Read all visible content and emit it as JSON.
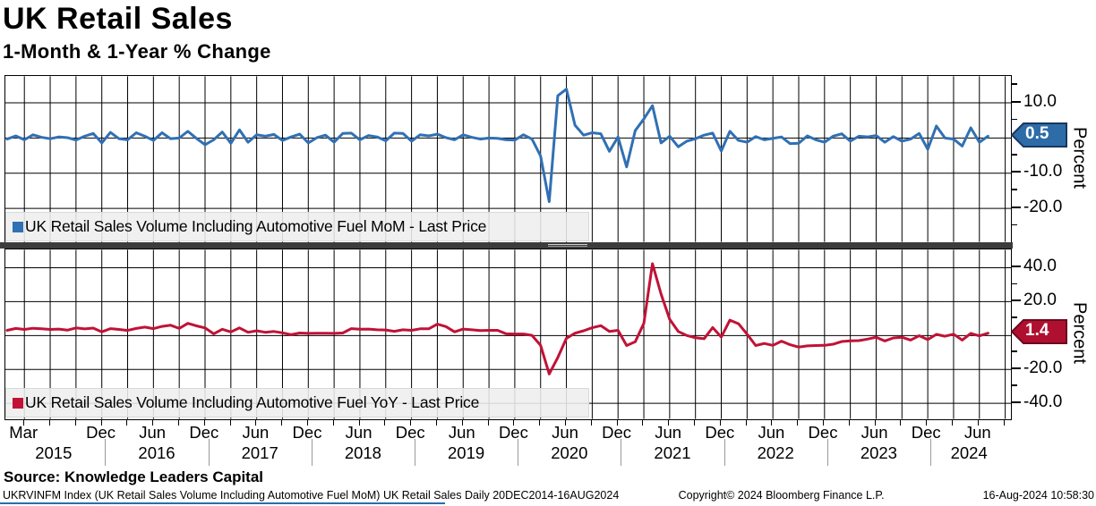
{
  "header": {
    "title": "UK Retail Sales",
    "subtitle": "1-Month & 1-Year % Change"
  },
  "footer": {
    "source": "Source: Knowledge Leaders Capital",
    "index_info": "UKRVINFM Index (UK Retail Sales Volume Including Automotive Fuel MoM) UK Retail Sales  Daily 20DEC2014-16AUG2024",
    "copyright": "Copyright© 2024 Bloomberg Finance L.P.",
    "timestamp": "16-Aug-2024 10:58:30"
  },
  "x_axis": {
    "month_ticks": [
      {
        "label": "Mar",
        "index": 2
      },
      {
        "label": "Dec",
        "index": 11
      },
      {
        "label": "Jun",
        "index": 17
      },
      {
        "label": "Dec",
        "index": 23
      },
      {
        "label": "Jun",
        "index": 29
      },
      {
        "label": "Dec",
        "index": 35
      },
      {
        "label": "Jun",
        "index": 41
      },
      {
        "label": "Dec",
        "index": 47
      },
      {
        "label": "Jun",
        "index": 53
      },
      {
        "label": "Dec",
        "index": 59
      },
      {
        "label": "Jun",
        "index": 65
      },
      {
        "label": "Dec",
        "index": 71
      },
      {
        "label": "Jun",
        "index": 77
      },
      {
        "label": "Dec",
        "index": 83
      },
      {
        "label": "Jun",
        "index": 89
      },
      {
        "label": "Dec",
        "index": 95
      },
      {
        "label": "Jun",
        "index": 101
      },
      {
        "label": "Dec",
        "index": 107
      },
      {
        "label": "Jun",
        "index": 113
      }
    ],
    "year_labels": [
      {
        "label": "2015",
        "center_index": 5.5
      },
      {
        "label": "2016",
        "center_index": 17.5
      },
      {
        "label": "2017",
        "center_index": 29.5
      },
      {
        "label": "2018",
        "center_index": 41.5
      },
      {
        "label": "2019",
        "center_index": 53.5
      },
      {
        "label": "2020",
        "center_index": 65.5
      },
      {
        "label": "2021",
        "center_index": 77.5
      },
      {
        "label": "2022",
        "center_index": 89.5
      },
      {
        "label": "2023",
        "center_index": 101.5
      },
      {
        "label": "2024",
        "center_index": 112
      }
    ],
    "year_separator_indices": [
      11.5,
      23.5,
      35.5,
      47.5,
      59.5,
      71.5,
      83.5,
      95.5,
      107.5
    ]
  },
  "chart_data": [
    {
      "type": "line",
      "legend": "UK Retail Sales Volume Including Automotive Fuel MoM - Last Price",
      "series_name": "UK Retail Sales Volume Including Automotive Fuel MoM",
      "axis_title": "Percent",
      "color": "#3070B4",
      "badge_border": "#17375E",
      "last_price": "0.5",
      "last_price_value": 0.5,
      "ylim": [
        -29.5,
        17.5
      ],
      "ygrid": [
        10,
        0,
        -10,
        -20
      ],
      "yticks": [
        {
          "value": 10,
          "label": "10.0"
        },
        {
          "value": -10,
          "label": "-10.0"
        },
        {
          "value": -20,
          "label": "-20.0"
        }
      ],
      "yticks_minor": [
        15,
        5,
        -5,
        -15,
        -25
      ],
      "x_unit": "month",
      "x_start": "2015-01",
      "x_end": "2024-07",
      "values": [
        -0.3,
        0.6,
        -0.5,
        0.9,
        0.2,
        -0.2,
        0.3,
        0.1,
        -0.6,
        0.5,
        1.3,
        -1.4,
        1.6,
        -0.2,
        -0.5,
        1.5,
        0.5,
        -0.7,
        1.5,
        -0.2,
        0.0,
        1.9,
        -0.1,
        -1.9,
        -0.5,
        1.7,
        -1.5,
        2.3,
        -1.2,
        0.9,
        0.5,
        1.0,
        -0.7,
        0.3,
        1.1,
        -1.4,
        0.1,
        0.8,
        -1.2,
        1.3,
        1.4,
        -0.5,
        0.7,
        0.3,
        -0.8,
        1.4,
        1.3,
        -0.9,
        0.9,
        0.6,
        1.1,
        0.1,
        -0.5,
        0.9,
        0.2,
        -0.3,
        0.0,
        -0.1,
        -0.5,
        -0.6,
        0.9,
        -0.3,
        -5.1,
        -18.1,
        12.0,
        13.9,
        3.6,
        0.8,
        1.5,
        1.2,
        -3.8,
        0.3,
        -8.2,
        2.1,
        5.4,
        9.2,
        -1.4,
        0.5,
        -2.5,
        -0.9,
        -0.2,
        0.8,
        1.4,
        -3.7,
        1.9,
        -0.7,
        -1.2,
        0.4,
        -0.5,
        -0.1,
        0.3,
        -1.6,
        -1.5,
        0.6,
        -0.5,
        -1.2,
        0.5,
        1.2,
        -0.9,
        0.5,
        0.3,
        0.7,
        -1.2,
        0.4,
        -0.9,
        -0.3,
        1.3,
        -3.2,
        3.4,
        0.0,
        -0.3,
        -2.3,
        2.9,
        -1.2,
        0.5
      ]
    },
    {
      "type": "line",
      "legend": "UK Retail Sales Volume Including Automotive Fuel YoY - Last Price",
      "series_name": "UK Retail Sales Volume Including Automotive Fuel YoY",
      "axis_title": "Percent",
      "color": "#C11236",
      "badge_border": "#6B0A1F",
      "last_price": "1.4",
      "last_price_value": 1.4,
      "ylim": [
        -49.2,
        50.6
      ],
      "ygrid": [
        40,
        20,
        0,
        -20,
        -40
      ],
      "yticks": [
        {
          "value": 40,
          "label": "40.0"
        },
        {
          "value": 20,
          "label": "20.0"
        },
        {
          "value": -20,
          "label": "-20.0"
        },
        {
          "value": -40,
          "label": "-40.0"
        }
      ],
      "yticks_minor": [
        30,
        10,
        -10,
        -30
      ],
      "x_unit": "month",
      "x_start": "2015-01",
      "x_end": "2024-07",
      "values": [
        3.1,
        4.2,
        3.6,
        4.3,
        4.0,
        3.6,
        3.8,
        3.2,
        4.5,
        3.9,
        4.4,
        2.2,
        4.1,
        3.6,
        3.0,
        4.2,
        5.0,
        4.1,
        5.4,
        6.1,
        4.2,
        7.2,
        5.7,
        4.5,
        1.0,
        3.7,
        2.1,
        4.5,
        1.9,
        2.8,
        1.9,
        2.4,
        1.6,
        0.5,
        1.5,
        1.3,
        1.4,
        1.4,
        1.3,
        1.5,
        4.1,
        3.7,
        3.8,
        3.4,
        3.3,
        2.5,
        3.4,
        3.1,
        4.0,
        4.0,
        6.7,
        5.3,
        2.2,
        3.8,
        3.4,
        2.9,
        3.1,
        3.1,
        1.0,
        0.9,
        0.9,
        0.1,
        -5.8,
        -22.7,
        -13.0,
        -1.6,
        1.4,
        2.8,
        4.6,
        5.8,
        2.4,
        3.1,
        -5.9,
        -3.7,
        7.2,
        42.4,
        24.5,
        9.6,
        2.4,
        0.0,
        -1.3,
        -1.9,
        4.7,
        -0.9,
        9.1,
        7.0,
        0.8,
        -5.9,
        -4.7,
        -5.8,
        -3.3,
        -5.4,
        -6.8,
        -6.1,
        -5.9,
        -5.8,
        -5.1,
        -3.5,
        -3.1,
        -3.0,
        -2.1,
        -1.0,
        -3.2,
        -1.4,
        -1.0,
        -2.7,
        -0.1,
        -2.4,
        0.7,
        -0.4,
        0.8,
        -2.7,
        1.3,
        -0.2,
        1.4
      ]
    }
  ]
}
